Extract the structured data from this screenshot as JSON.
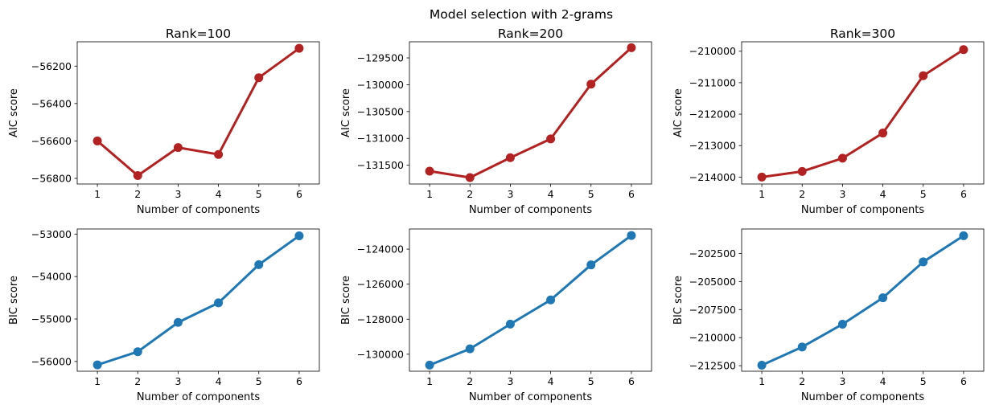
{
  "suptitle": "Model selection with 2-grams",
  "colors": {
    "aic": "#b22222",
    "bic": "#1f77b4"
  },
  "chart_data": [
    {
      "type": "line",
      "title": "Rank=100",
      "xlabel": "Number of components",
      "ylabel": "AIC score",
      "x": [
        1,
        2,
        3,
        4,
        5,
        6
      ],
      "y": [
        -56600,
        -56785,
        -56635,
        -56672,
        -56262,
        -56105
      ],
      "xlim": [
        0.5,
        6.5
      ],
      "ylim": [
        -56830,
        -56070
      ],
      "yticks": [
        -56800,
        -56600,
        -56400,
        -56200
      ],
      "ytick_labels": [
        "−56800",
        "−56600",
        "−56400",
        "−56200"
      ],
      "xticks": [
        1,
        2,
        3,
        4,
        5,
        6
      ],
      "xtick_labels": [
        "1",
        "2",
        "3",
        "4",
        "5",
        "6"
      ],
      "color": "#b22222",
      "grid": false
    },
    {
      "type": "line",
      "title": "Rank=200",
      "xlabel": "Number of components",
      "ylabel": "AIC score",
      "x": [
        1,
        2,
        3,
        4,
        5,
        6
      ],
      "y": [
        -131610,
        -131730,
        -131360,
        -131010,
        -129990,
        -129310
      ],
      "xlim": [
        0.5,
        6.5
      ],
      "ylim": [
        -131850,
        -129200
      ],
      "yticks": [
        -131500,
        -131000,
        -130500,
        -130000,
        -129500
      ],
      "ytick_labels": [
        "−131500",
        "−131000",
        "−130500",
        "−130000",
        "−129500"
      ],
      "xticks": [
        1,
        2,
        3,
        4,
        5,
        6
      ],
      "xtick_labels": [
        "1",
        "2",
        "3",
        "4",
        "5",
        "6"
      ],
      "color": "#b22222",
      "grid": false
    },
    {
      "type": "line",
      "title": "Rank=300",
      "xlabel": "Number of components",
      "ylabel": "AIC score",
      "x": [
        1,
        2,
        3,
        4,
        5,
        6
      ],
      "y": [
        -214000,
        -213820,
        -213400,
        -212600,
        -210780,
        -209950
      ],
      "xlim": [
        0.5,
        6.5
      ],
      "ylim": [
        -214220,
        -209700
      ],
      "yticks": [
        -214000,
        -213000,
        -212000,
        -211000,
        -210000
      ],
      "ytick_labels": [
        "−214000",
        "−213000",
        "−212000",
        "−211000",
        "−210000"
      ],
      "xticks": [
        1,
        2,
        3,
        4,
        5,
        6
      ],
      "xtick_labels": [
        "1",
        "2",
        "3",
        "4",
        "5",
        "6"
      ],
      "color": "#b22222",
      "grid": false
    },
    {
      "type": "line",
      "title": "",
      "xlabel": "Number of components",
      "ylabel": "BIC score",
      "x": [
        1,
        2,
        3,
        4,
        5,
        6
      ],
      "y": [
        -56080,
        -55770,
        -55080,
        -54620,
        -53720,
        -53040
      ],
      "xlim": [
        0.5,
        6.5
      ],
      "ylim": [
        -56230,
        -52880
      ],
      "yticks": [
        -56000,
        -55000,
        -54000,
        -53000
      ],
      "ytick_labels": [
        "−56000",
        "−55000",
        "−54000",
        "−53000"
      ],
      "xticks": [
        1,
        2,
        3,
        4,
        5,
        6
      ],
      "xtick_labels": [
        "1",
        "2",
        "3",
        "4",
        "5",
        "6"
      ],
      "color": "#1f77b4",
      "grid": false
    },
    {
      "type": "line",
      "title": "",
      "xlabel": "Number of components",
      "ylabel": "BIC score",
      "x": [
        1,
        2,
        3,
        4,
        5,
        6
      ],
      "y": [
        -130620,
        -129690,
        -128280,
        -126900,
        -124900,
        -123220
      ],
      "xlim": [
        0.5,
        6.5
      ],
      "ylim": [
        -130970,
        -122850
      ],
      "yticks": [
        -130000,
        -128000,
        -126000,
        -124000
      ],
      "ytick_labels": [
        "−130000",
        "−128000",
        "−126000",
        "−124000"
      ],
      "xticks": [
        1,
        2,
        3,
        4,
        5,
        6
      ],
      "xtick_labels": [
        "1",
        "2",
        "3",
        "4",
        "5",
        "6"
      ],
      "color": "#1f77b4",
      "grid": false
    },
    {
      "type": "line",
      "title": "",
      "xlabel": "Number of components",
      "ylabel": "BIC score",
      "x": [
        1,
        2,
        3,
        4,
        5,
        6
      ],
      "y": [
        -212450,
        -210830,
        -208800,
        -206450,
        -203250,
        -200920
      ],
      "xlim": [
        0.5,
        6.5
      ],
      "ylim": [
        -212990,
        -200320
      ],
      "yticks": [
        -212500,
        -210000,
        -207500,
        -205000,
        -202500
      ],
      "ytick_labels": [
        "−212500",
        "−210000",
        "−207500",
        "−205000",
        "−202500"
      ],
      "xticks": [
        1,
        2,
        3,
        4,
        5,
        6
      ],
      "xtick_labels": [
        "1",
        "2",
        "3",
        "4",
        "5",
        "6"
      ],
      "color": "#1f77b4",
      "grid": false
    }
  ]
}
